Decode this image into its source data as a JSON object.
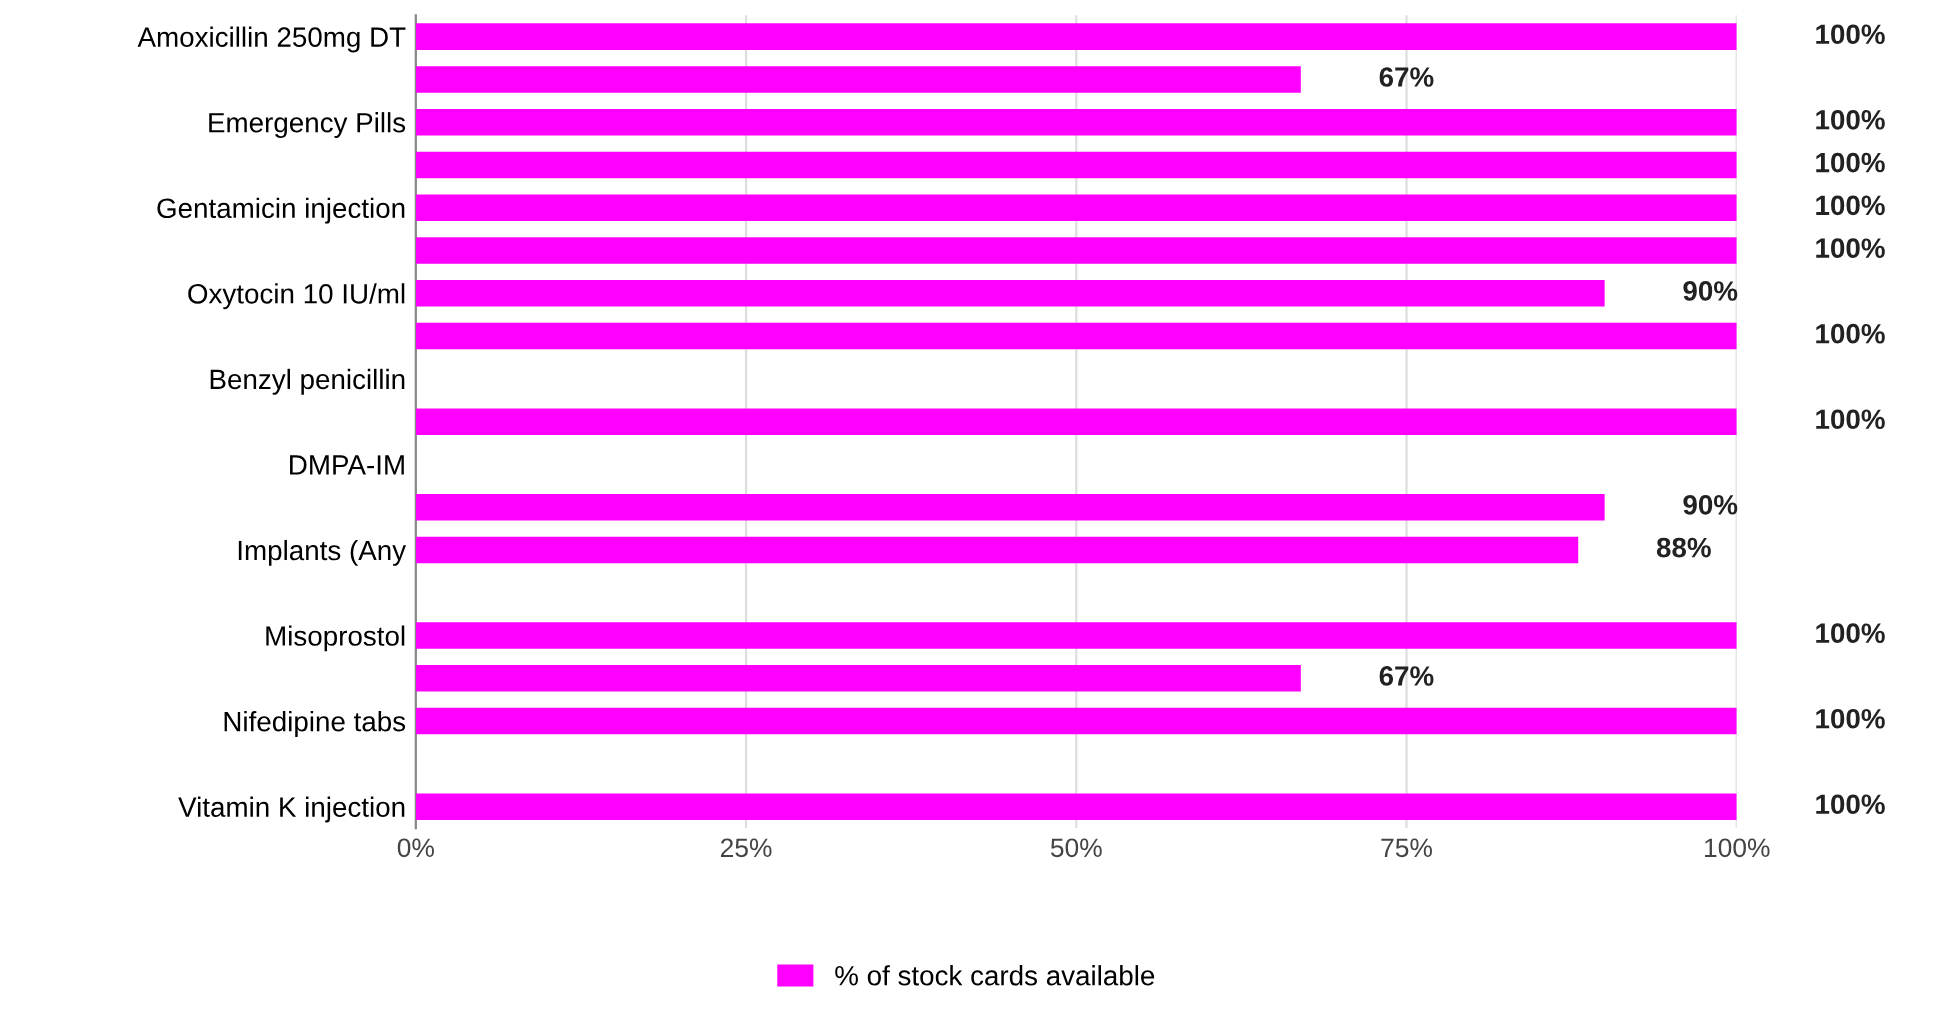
{
  "chart_data": {
    "type": "bar",
    "orientation": "horizontal",
    "categories": [
      "Amoxicillin 250mg DT",
      null,
      "Emergency Pills",
      null,
      "Gentamicin injection",
      null,
      "Oxytocin 10 IU/ml",
      null,
      "Benzyl penicillin",
      null,
      "DMPA-IM",
      null,
      "Implants (Any",
      null,
      "Misoprostol",
      null,
      "Nifedipine tabs",
      null,
      "Vitamin K injection"
    ],
    "series": [
      {
        "name": "% of stock cards available",
        "color": "#ff00ff",
        "values": [
          100,
          67,
          100,
          100,
          100,
          100,
          90,
          100,
          null,
          100,
          null,
          90,
          88,
          null,
          100,
          67,
          100,
          null,
          100
        ],
        "value_labels": [
          "100%",
          "67%",
          "100%",
          "100%",
          "100%",
          "100%",
          "90%",
          "100%",
          null,
          "100%",
          null,
          "90%",
          "88%",
          null,
          "100%",
          "67%",
          "100%",
          null,
          "100%"
        ]
      }
    ],
    "xlim": [
      0,
      100
    ],
    "xticks": [
      {
        "value": 0,
        "label": "0%"
      },
      {
        "value": 25,
        "label": "25%"
      },
      {
        "value": 50,
        "label": "50%"
      },
      {
        "value": 75,
        "label": "75%"
      },
      {
        "value": 100,
        "label": "100%"
      }
    ],
    "grid": "x",
    "legend": "bottom"
  }
}
